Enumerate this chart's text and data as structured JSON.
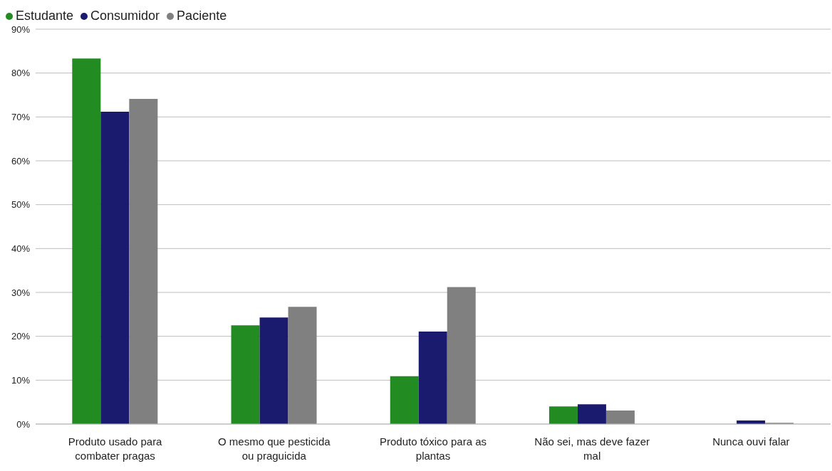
{
  "chart_data": {
    "type": "bar",
    "categories": [
      "Produto usado para combater pragas",
      "O mesmo que pesticida ou praguicida",
      "Produto tóxico para as plantas",
      "Não sei, mas deve fazer mal",
      "Nunca ouvi falar"
    ],
    "series": [
      {
        "name": "Estudante",
        "color": "#228b22",
        "values": [
          83.3,
          22.5,
          10.9,
          4.0,
          0
        ]
      },
      {
        "name": "Consumidor",
        "color": "#1a1a6e",
        "values": [
          71.2,
          24.3,
          21.1,
          4.5,
          0.8
        ]
      },
      {
        "name": "Paciente",
        "color": "#808080",
        "values": [
          74.1,
          26.7,
          31.2,
          3.1,
          0.3
        ]
      }
    ],
    "ylim": [
      0,
      90
    ],
    "yticks": [
      {
        "value": 0,
        "label": "0%"
      },
      {
        "value": 10,
        "label": "10%"
      },
      {
        "value": 20,
        "label": "20%"
      },
      {
        "value": 30,
        "label": "30%"
      },
      {
        "value": 40,
        "label": "40%"
      },
      {
        "value": 50,
        "label": "50%"
      },
      {
        "value": 60,
        "label": "60%"
      },
      {
        "value": 70,
        "label": "70%"
      },
      {
        "value": 80,
        "label": "80%"
      },
      {
        "value": 90,
        "label": "90%"
      }
    ],
    "grid": "y",
    "legend": "top left"
  }
}
